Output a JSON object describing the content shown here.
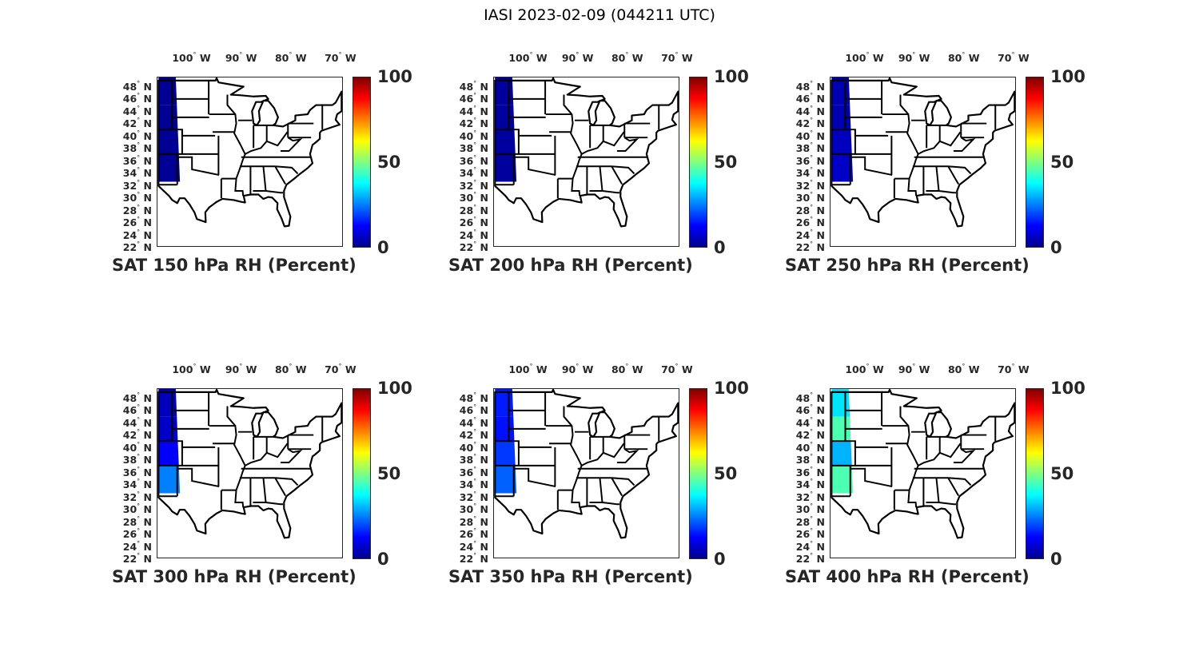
{
  "figure_title": "IASI 2023-02-09 (044211 UTC)",
  "lon_labels": [
    "100",
    "90",
    "80",
    "70"
  ],
  "lon_values": [
    -100,
    -90,
    -80,
    -70
  ],
  "lon_suffix": "W",
  "lat_labels": [
    "48",
    "46",
    "44",
    "42",
    "40",
    "38",
    "36",
    "34",
    "32",
    "30",
    "28",
    "26",
    "24",
    "22"
  ],
  "lat_suffix": "N",
  "colorbar": {
    "ticks": [
      "0",
      "50",
      "100"
    ],
    "values": [
      0,
      50,
      100
    ],
    "range": [
      0,
      100
    ]
  },
  "panels": [
    {
      "title": "SAT 150 hPa RH (Percent)",
      "swath_rh": [
        2,
        2,
        2,
        2
      ]
    },
    {
      "title": "SAT 200 hPa RH (Percent)",
      "swath_rh": [
        3,
        3,
        3,
        3
      ]
    },
    {
      "title": "SAT 250 hPa RH (Percent)",
      "swath_rh": [
        5,
        5,
        6,
        7
      ]
    },
    {
      "title": "SAT 300 hPa RH (Percent)",
      "swath_rh": [
        6,
        7,
        12,
        25
      ]
    },
    {
      "title": "SAT 350 hPa RH (Percent)",
      "swath_rh": [
        15,
        14,
        18,
        22
      ]
    },
    {
      "title": "SAT 400 hPa RH (Percent)",
      "swath_rh": [
        35,
        45,
        30,
        45
      ]
    }
  ]
}
